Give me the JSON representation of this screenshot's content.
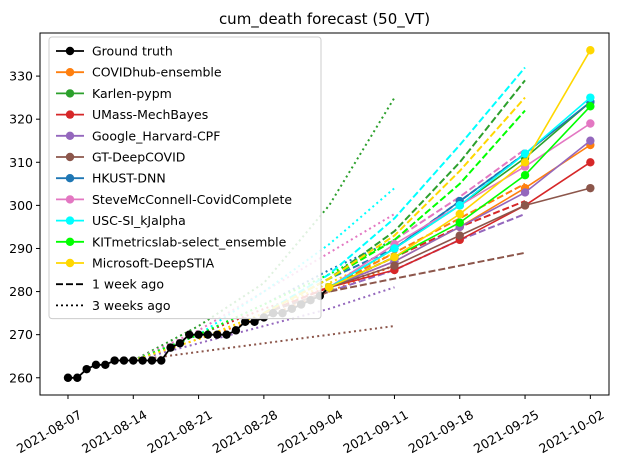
{
  "chart_data": {
    "type": "line",
    "title": "cum_death forecast (50_VT)",
    "xlabel": "",
    "ylabel": "",
    "x_ticks": [
      "2021-08-07",
      "2021-08-14",
      "2021-08-21",
      "2021-08-28",
      "2021-09-04",
      "2021-09-11",
      "2021-09-18",
      "2021-09-25",
      "2021-10-02"
    ],
    "y_ticks": [
      260,
      270,
      280,
      290,
      300,
      310,
      320,
      330
    ],
    "xlim": [
      "2021-08-04",
      "2021-10-04"
    ],
    "ylim": [
      256,
      340
    ],
    "grid": false,
    "legend_position": "top-left",
    "legend": [
      {
        "label": "Ground truth",
        "color": "#000000",
        "style": "marker"
      },
      {
        "label": "COVIDhub-ensemble",
        "color": "#ff7f0e",
        "style": "marker"
      },
      {
        "label": "Karlen-pypm",
        "color": "#2ca02c",
        "style": "marker"
      },
      {
        "label": "UMass-MechBayes",
        "color": "#d62728",
        "style": "marker"
      },
      {
        "label": "Google_Harvard-CPF",
        "color": "#9467bd",
        "style": "marker"
      },
      {
        "label": "GT-DeepCOVID",
        "color": "#8c564b",
        "style": "marker"
      },
      {
        "label": "HKUST-DNN",
        "color": "#1f77b4",
        "style": "marker"
      },
      {
        "label": "SteveMcConnell-CovidComplete",
        "color": "#e377c2",
        "style": "marker"
      },
      {
        "label": "USC-SI_kJalpha",
        "color": "#00ffff",
        "style": "marker"
      },
      {
        "label": "KITmetricslab-select_ensemble",
        "color": "#00ff00",
        "style": "marker"
      },
      {
        "label": "Microsoft-DeepSTIA",
        "color": "#ffd700",
        "style": "marker"
      },
      {
        "label": "1 week ago",
        "color": "#000000",
        "style": "dashed"
      },
      {
        "label": "3 weeks ago",
        "color": "#000000",
        "style": "dotted"
      }
    ],
    "ground_truth": {
      "name": "Ground truth",
      "color": "#000000",
      "x": [
        "2021-08-07",
        "2021-08-08",
        "2021-08-09",
        "2021-08-10",
        "2021-08-11",
        "2021-08-12",
        "2021-08-13",
        "2021-08-14",
        "2021-08-15",
        "2021-08-16",
        "2021-08-17",
        "2021-08-18",
        "2021-08-19",
        "2021-08-20",
        "2021-08-21",
        "2021-08-22",
        "2021-08-23",
        "2021-08-24",
        "2021-08-25",
        "2021-08-26",
        "2021-08-27",
        "2021-08-28",
        "2021-08-29",
        "2021-08-30",
        "2021-08-31",
        "2021-09-01",
        "2021-09-02",
        "2021-09-03",
        "2021-09-04"
      ],
      "y": [
        260,
        260,
        262,
        263,
        263,
        264,
        264,
        264,
        264,
        264,
        264,
        267,
        268,
        270,
        270,
        270,
        270,
        270,
        271,
        273,
        273,
        274,
        275,
        275,
        276,
        277,
        278,
        279,
        281
      ]
    },
    "forecasts": [
      {
        "name": "COVIDhub-ensemble",
        "color": "#ff7f0e",
        "x": [
          "2021-09-04",
          "2021-09-11",
          "2021-09-18",
          "2021-09-25",
          "2021-10-02"
        ],
        "y": [
          281,
          287,
          295,
          304,
          314
        ]
      },
      {
        "name": "Karlen-pypm",
        "color": "#2ca02c",
        "x": [
          "2021-09-04",
          "2021-09-11",
          "2021-09-18",
          "2021-09-25",
          "2021-10-02"
        ],
        "y": [
          281,
          290,
          300,
          311,
          324
        ]
      },
      {
        "name": "UMass-MechBayes",
        "color": "#d62728",
        "x": [
          "2021-09-04",
          "2021-09-11",
          "2021-09-18",
          "2021-09-25",
          "2021-10-02"
        ],
        "y": [
          281,
          285,
          292,
          300,
          310
        ]
      },
      {
        "name": "Google_Harvard-CPF",
        "color": "#9467bd",
        "x": [
          "2021-09-04",
          "2021-09-11",
          "2021-09-18",
          "2021-09-25",
          "2021-10-02"
        ],
        "y": [
          281,
          287,
          295,
          303,
          315
        ]
      },
      {
        "name": "GT-DeepCOVID",
        "color": "#8c564b",
        "x": [
          "2021-09-04",
          "2021-09-11",
          "2021-09-18",
          "2021-09-25",
          "2021-10-02"
        ],
        "y": [
          281,
          286,
          293,
          300,
          304
        ]
      },
      {
        "name": "HKUST-DNN",
        "color": "#1f77b4",
        "x": [
          "2021-09-04",
          "2021-09-11",
          "2021-09-18",
          "2021-09-25",
          "2021-10-02"
        ],
        "y": [
          281,
          290,
          301,
          312,
          324
        ]
      },
      {
        "name": "SteveMcConnell-CovidComplete",
        "color": "#e377c2",
        "x": [
          "2021-09-04",
          "2021-09-11",
          "2021-09-18",
          "2021-09-25",
          "2021-10-02"
        ],
        "y": [
          281,
          291,
          300,
          309,
          319
        ]
      },
      {
        "name": "USC-SI_kJalpha",
        "color": "#00ffff",
        "x": [
          "2021-09-04",
          "2021-09-11",
          "2021-09-18",
          "2021-09-25",
          "2021-10-02"
        ],
        "y": [
          281,
          290,
          300,
          312,
          325
        ]
      },
      {
        "name": "KITmetricslab-select_ensemble",
        "color": "#00ff00",
        "x": [
          "2021-09-04",
          "2021-09-11",
          "2021-09-18",
          "2021-09-25",
          "2021-10-02"
        ],
        "y": [
          281,
          288,
          296,
          307,
          323
        ]
      },
      {
        "name": "Microsoft-DeepSTIA",
        "color": "#ffd700",
        "x": [
          "2021-09-04",
          "2021-09-11",
          "2021-09-18",
          "2021-09-25",
          "2021-10-02"
        ],
        "y": [
          281,
          288,
          298,
          310,
          336
        ]
      }
    ],
    "forecasts_1_week_ago": [
      {
        "name": "COVIDhub-ensemble",
        "color": "#ff7f0e",
        "x": [
          "2021-08-28",
          "2021-09-04",
          "2021-09-11",
          "2021-09-18",
          "2021-09-25"
        ],
        "y": [
          275,
          281,
          289,
          297,
          305
        ]
      },
      {
        "name": "Karlen-pypm",
        "color": "#2ca02c",
        "x": [
          "2021-08-28",
          "2021-09-04",
          "2021-09-11",
          "2021-09-18",
          "2021-09-25"
        ],
        "y": [
          275,
          283,
          294,
          310,
          329
        ]
      },
      {
        "name": "UMass-MechBayes",
        "color": "#d62728",
        "x": [
          "2021-08-28",
          "2021-09-04",
          "2021-09-11",
          "2021-09-18",
          "2021-09-25"
        ],
        "y": [
          275,
          281,
          288,
          295,
          301
        ]
      },
      {
        "name": "Google_Harvard-CPF",
        "color": "#9467bd",
        "x": [
          "2021-08-28",
          "2021-09-04",
          "2021-09-11",
          "2021-09-18",
          "2021-09-25"
        ],
        "y": [
          275,
          280,
          285,
          292,
          298
        ]
      },
      {
        "name": "GT-DeepCOVID",
        "color": "#8c564b",
        "x": [
          "2021-08-28",
          "2021-09-04",
          "2021-09-11",
          "2021-09-18",
          "2021-09-25"
        ],
        "y": [
          275,
          280,
          283,
          286,
          289
        ]
      },
      {
        "name": "HKUST-DNN",
        "color": "#1f77b4",
        "x": [
          "2021-08-28",
          "2021-09-04",
          "2021-09-11",
          "2021-09-18",
          "2021-09-25"
        ],
        "y": [
          275,
          283,
          290,
          301,
          312
        ]
      },
      {
        "name": "SteveMcConnell-CovidComplete",
        "color": "#e377c2",
        "x": [
          "2021-08-28",
          "2021-09-04",
          "2021-09-11",
          "2021-09-18",
          "2021-09-25"
        ],
        "y": [
          275,
          283,
          292,
          302,
          313
        ]
      },
      {
        "name": "USC-SI_kJalpha",
        "color": "#00ffff",
        "x": [
          "2021-08-28",
          "2021-09-04",
          "2021-09-11",
          "2021-09-18",
          "2021-09-25"
        ],
        "y": [
          275,
          284,
          297,
          314,
          332
        ]
      },
      {
        "name": "KITmetricslab-select_ensemble",
        "color": "#00ff00",
        "x": [
          "2021-08-28",
          "2021-09-04",
          "2021-09-11",
          "2021-09-18",
          "2021-09-25"
        ],
        "y": [
          275,
          283,
          292,
          305,
          322
        ]
      },
      {
        "name": "Microsoft-DeepSTIA",
        "color": "#ffd700",
        "x": [
          "2021-08-28",
          "2021-09-04",
          "2021-09-11",
          "2021-09-18",
          "2021-09-25"
        ],
        "y": [
          275,
          283,
          293,
          308,
          325
        ]
      }
    ],
    "forecasts_3_weeks_ago": [
      {
        "name": "COVIDhub-ensemble",
        "color": "#ff7f0e",
        "x": [
          "2021-08-14",
          "2021-08-21",
          "2021-08-28",
          "2021-09-04",
          "2021-09-11"
        ],
        "y": [
          264,
          269,
          274,
          280,
          286
        ]
      },
      {
        "name": "Karlen-pypm",
        "color": "#2ca02c",
        "x": [
          "2021-08-14",
          "2021-08-21",
          "2021-08-28",
          "2021-09-04",
          "2021-09-11"
        ],
        "y": [
          264,
          272,
          282,
          300,
          325
        ]
      },
      {
        "name": "UMass-MechBayes",
        "color": "#d62728",
        "x": [
          "2021-08-14",
          "2021-08-21",
          "2021-08-28",
          "2021-09-04",
          "2021-09-11"
        ],
        "y": [
          264,
          270,
          276,
          281,
          286
        ]
      },
      {
        "name": "Google_Harvard-CPF",
        "color": "#9467bd",
        "x": [
          "2021-08-14",
          "2021-08-21",
          "2021-08-28",
          "2021-09-04",
          "2021-09-11"
        ],
        "y": [
          264,
          268,
          272,
          276,
          281
        ]
      },
      {
        "name": "GT-DeepCOVID",
        "color": "#8c564b",
        "x": [
          "2021-08-14",
          "2021-08-21",
          "2021-08-28",
          "2021-09-04",
          "2021-09-11"
        ],
        "y": [
          264,
          266,
          268,
          270,
          272
        ]
      },
      {
        "name": "HKUST-DNN",
        "color": "#1f77b4",
        "x": [
          "2021-08-14",
          "2021-08-21",
          "2021-08-28",
          "2021-09-04",
          "2021-09-11"
        ],
        "y": [
          264,
          270,
          277,
          285,
          292
        ]
      },
      {
        "name": "SteveMcConnell-CovidComplete",
        "color": "#e377c2",
        "x": [
          "2021-08-14",
          "2021-08-21",
          "2021-08-28",
          "2021-09-04",
          "2021-09-11"
        ],
        "y": [
          264,
          271,
          280,
          289,
          298
        ]
      },
      {
        "name": "USC-SI_kJalpha",
        "color": "#00ffff",
        "x": [
          "2021-08-14",
          "2021-08-21",
          "2021-08-28",
          "2021-09-04",
          "2021-09-11"
        ],
        "y": [
          264,
          270,
          280,
          291,
          304
        ]
      },
      {
        "name": "KITmetricslab-select_ensemble",
        "color": "#00ff00",
        "x": [
          "2021-08-14",
          "2021-08-21",
          "2021-08-28",
          "2021-09-04",
          "2021-09-11"
        ],
        "y": [
          264,
          270,
          277,
          284,
          292
        ]
      },
      {
        "name": "Microsoft-DeepSTIA",
        "color": "#ffd700",
        "x": [
          "2021-08-14",
          "2021-08-21",
          "2021-08-28",
          "2021-09-04",
          "2021-09-11"
        ],
        "y": [
          264,
          269,
          275,
          282,
          289
        ]
      }
    ]
  }
}
